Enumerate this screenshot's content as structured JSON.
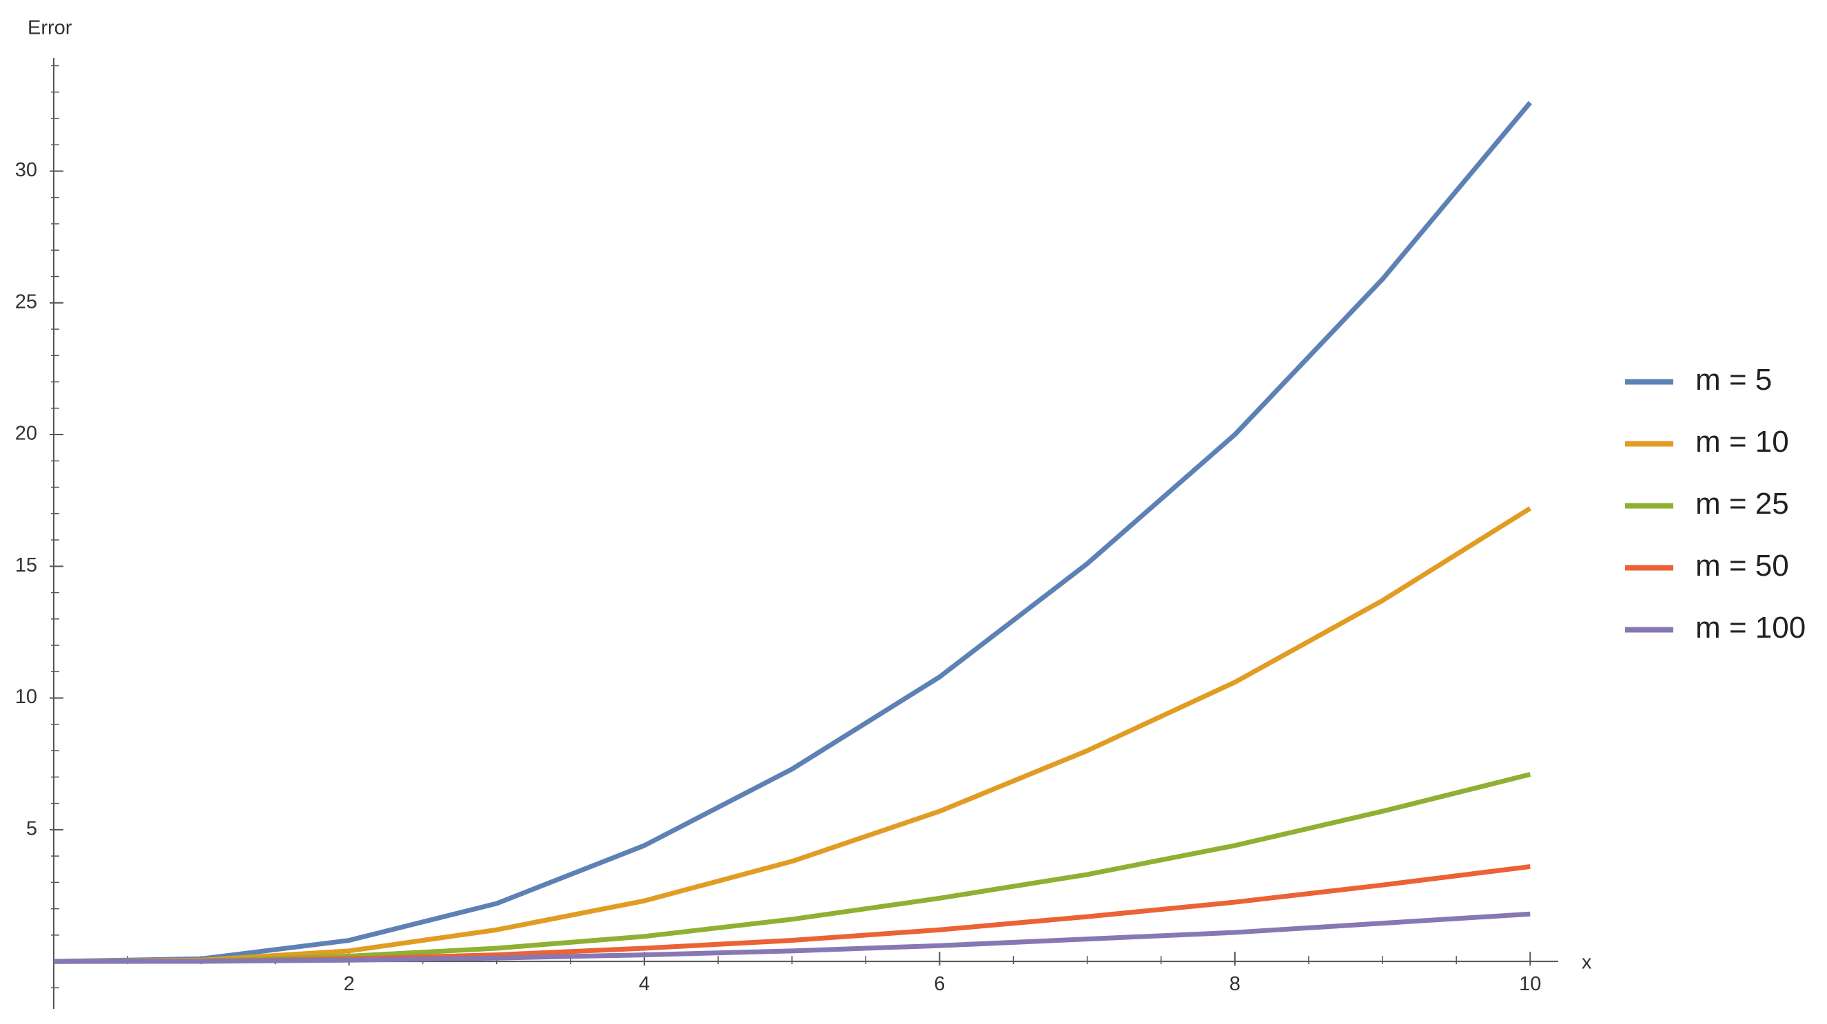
{
  "chart_data": {
    "type": "line",
    "x_label": "x",
    "y_label": "Error",
    "x": [
      0,
      1,
      2,
      3,
      4,
      5,
      6,
      7,
      8,
      9,
      10
    ],
    "series": [
      {
        "name": "m = 5",
        "color": "#5e81b5",
        "values": [
          0,
          0.1,
          0.8,
          2.2,
          4.4,
          7.3,
          10.8,
          15.1,
          20.0,
          25.9,
          32.6
        ]
      },
      {
        "name": "m = 10",
        "color": "#e19c24",
        "values": [
          0,
          0.05,
          0.4,
          1.2,
          2.3,
          3.8,
          5.7,
          8.0,
          10.6,
          13.7,
          17.2
        ]
      },
      {
        "name": "m = 25",
        "color": "#8fb032",
        "values": [
          0,
          0.02,
          0.2,
          0.5,
          0.95,
          1.6,
          2.4,
          3.3,
          4.4,
          5.7,
          7.1
        ]
      },
      {
        "name": "m = 50",
        "color": "#eb6235",
        "values": [
          0,
          0.01,
          0.1,
          0.25,
          0.5,
          0.8,
          1.2,
          1.7,
          2.25,
          2.9,
          3.6
        ]
      },
      {
        "name": "m = 100",
        "color": "#8778b3",
        "values": [
          0,
          0.005,
          0.05,
          0.13,
          0.25,
          0.4,
          0.6,
          0.85,
          1.1,
          1.45,
          1.8
        ]
      }
    ],
    "xlim": [
      0,
      10.19
    ],
    "ylim": [
      -1.8,
      34.3
    ],
    "xticks": [
      2,
      4,
      6,
      8,
      10
    ],
    "yticks": [
      5,
      10,
      15,
      20,
      25,
      30
    ],
    "xminorticks": [
      0.5,
      1,
      1.5,
      2.5,
      3,
      3.5,
      4.5,
      5,
      5.5,
      6.5,
      7,
      7.5,
      8.5,
      9,
      9.5
    ],
    "yminorticks": [
      -1,
      1,
      2,
      3,
      4,
      6,
      7,
      8,
      9,
      11,
      12,
      13,
      14,
      16,
      17,
      18,
      19,
      21,
      22,
      23,
      24,
      26,
      27,
      28,
      29,
      31,
      32,
      33,
      34
    ],
    "legend": "right"
  }
}
